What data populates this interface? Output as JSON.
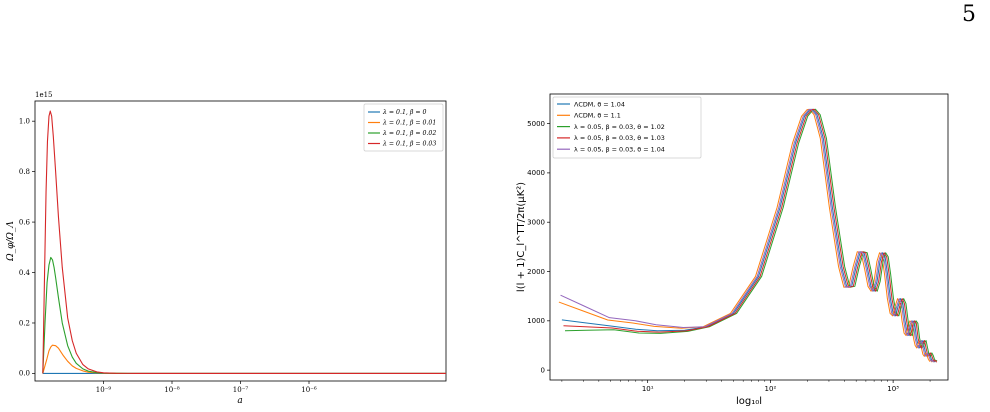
{
  "page": {
    "number": "5"
  },
  "chart_data": [
    {
      "type": "line",
      "offset_label": "1e15",
      "xlabel": "a",
      "ylabel": "Ω_φ/Ω_Λ",
      "xscale": "log",
      "xlim": [
        1e-10,
        0.0001
      ],
      "ylim": [
        -0.03,
        1.08
      ],
      "x_ticks": [
        {
          "value": 1e-09,
          "label": "10⁻⁹"
        },
        {
          "value": 1e-08,
          "label": "10⁻⁸"
        },
        {
          "value": 1e-07,
          "label": "10⁻⁷"
        },
        {
          "value": 1e-06,
          "label": "10⁻⁶"
        }
      ],
      "y_ticks": [
        {
          "value": 0.0,
          "label": "0.0"
        },
        {
          "value": 0.2,
          "label": "0.2"
        },
        {
          "value": 0.4,
          "label": "0.4"
        },
        {
          "value": 0.6,
          "label": "0.6"
        },
        {
          "value": 0.8,
          "label": "0.8"
        },
        {
          "value": 1.0,
          "label": "1.0"
        }
      ],
      "legend_position": "top-right",
      "series": [
        {
          "name": "λ = 0.1, β = 0",
          "color": "#1f77b4",
          "x": [
            1.3e-10,
            1.5e-10,
            2e-10,
            3e-10,
            5e-10,
            1e-09,
            1e-08,
            1e-06,
            0.0001
          ],
          "y": [
            0,
            0,
            0,
            0,
            0,
            0,
            0,
            0,
            0
          ]
        },
        {
          "name": "λ = 0.1, β = 0.01",
          "color": "#ff7f0e",
          "x": [
            1.3e-10,
            1.5e-10,
            1.6e-10,
            1.7e-10,
            1.8e-10,
            2e-10,
            2.2e-10,
            2.6e-10,
            3e-10,
            3.5e-10,
            4e-10,
            5e-10,
            6e-10,
            8e-10,
            1e-09,
            1.5e-09,
            3e-09,
            1e-08,
            1e-06,
            0.0001
          ],
          "y": [
            0,
            0.06,
            0.09,
            0.105,
            0.112,
            0.11,
            0.1,
            0.07,
            0.048,
            0.03,
            0.02,
            0.01,
            0.005,
            0.002,
            0.001,
            0.0003,
            0,
            0,
            0,
            0
          ]
        },
        {
          "name": "λ = 0.1, β = 0.02",
          "color": "#2ca02c",
          "x": [
            1.3e-10,
            1.4e-10,
            1.5e-10,
            1.6e-10,
            1.7e-10,
            1.8e-10,
            1.9e-10,
            2e-10,
            2.2e-10,
            2.5e-10,
            3e-10,
            3.5e-10,
            4e-10,
            5e-10,
            6e-10,
            8e-10,
            1e-09,
            1.5e-09,
            3e-09,
            1e-08,
            1e-06,
            0.0001
          ],
          "y": [
            0,
            0.2,
            0.36,
            0.43,
            0.46,
            0.45,
            0.42,
            0.38,
            0.3,
            0.2,
            0.11,
            0.065,
            0.04,
            0.018,
            0.009,
            0.003,
            0.0012,
            0.0003,
            0,
            0,
            0,
            0
          ]
        },
        {
          "name": "λ = 0.1, β = 0.03",
          "color": "#d62728",
          "x": [
            1.3e-10,
            1.38e-10,
            1.45e-10,
            1.52e-10,
            1.6e-10,
            1.67e-10,
            1.75e-10,
            1.85e-10,
            2e-10,
            2.2e-10,
            2.5e-10,
            3e-10,
            3.5e-10,
            4e-10,
            5e-10,
            6e-10,
            8e-10,
            1e-09,
            1.5e-09,
            3e-09,
            1e-08,
            1e-06,
            0.0001
          ],
          "y": [
            0,
            0.4,
            0.72,
            0.92,
            1.02,
            1.04,
            1.02,
            0.94,
            0.8,
            0.62,
            0.42,
            0.22,
            0.13,
            0.08,
            0.035,
            0.018,
            0.006,
            0.0025,
            0.0006,
            0,
            0,
            0,
            0
          ]
        }
      ]
    },
    {
      "type": "line",
      "xlabel": "log₁₀l",
      "ylabel": "l(l + 1)C_l^TT/2π(μK²)",
      "xscale": "log",
      "xlim": [
        1.6,
        2800
      ],
      "ylim": [
        -200,
        5600
      ],
      "x_ticks": [
        {
          "value": 10,
          "label": "10¹"
        },
        {
          "value": 100,
          "label": "10²"
        },
        {
          "value": 1000,
          "label": "10³"
        }
      ],
      "y_ticks": [
        {
          "value": 0,
          "label": "0"
        },
        {
          "value": 1000,
          "label": "1000"
        },
        {
          "value": 2000,
          "label": "2000"
        },
        {
          "value": 3000,
          "label": "3000"
        },
        {
          "value": 4000,
          "label": "4000"
        },
        {
          "value": 5000,
          "label": "5000"
        }
      ],
      "legend_position": "top-left",
      "series": [
        {
          "name": "ΛCDM, θ = 1.04",
          "color": "#1f77b4",
          "shift": 1.0,
          "low": 1020
        },
        {
          "name": "ΛCDM, θ = 1.1",
          "color": "#ff7f0e",
          "shift": 0.945,
          "low": 1380
        },
        {
          "name": "λ = 0.05, β = 0.03, θ = 1.02",
          "color": "#2ca02c",
          "shift": 1.06,
          "low": 800
        },
        {
          "name": "λ = 0.05, β = 0.03, θ = 1.03",
          "color": "#d62728",
          "shift": 1.03,
          "low": 900
        },
        {
          "name": "λ = 0.05, β = 0.03, θ = 1.04",
          "color": "#9467bd",
          "shift": 0.975,
          "low": 1520
        }
      ],
      "base_curve": {
        "l": [
          2,
          3,
          5,
          8,
          12,
          20,
          30,
          50,
          80,
          120,
          160,
          190,
          210,
          220,
          240,
          270,
          320,
          380,
          420,
          460,
          500,
          540,
          580,
          620,
          660,
          700,
          740,
          780,
          820,
          860,
          900,
          950,
          1000,
          1050,
          1100,
          1150,
          1200,
          1250,
          1300,
          1350,
          1400,
          1450,
          1500,
          1550,
          1600,
          1650,
          1700,
          1750,
          1800,
          1850,
          1900,
          1950,
          2000,
          2050,
          2100,
          2150,
          2200
        ],
        "d": [
          null,
          null,
          null,
          830,
          800,
          810,
          880,
          1150,
          1900,
          3300,
          4600,
          5150,
          5280,
          5290,
          5180,
          4700,
          3300,
          2100,
          1680,
          1700,
          2100,
          2400,
          2380,
          2050,
          1700,
          1600,
          1800,
          2200,
          2380,
          2300,
          1950,
          1450,
          1150,
          1100,
          1300,
          1450,
          1350,
          1000,
          750,
          700,
          900,
          1000,
          950,
          650,
          500,
          450,
          550,
          600,
          450,
          320,
          280,
          350,
          300,
          220,
          180,
          200,
          160
        ]
      }
    }
  ]
}
